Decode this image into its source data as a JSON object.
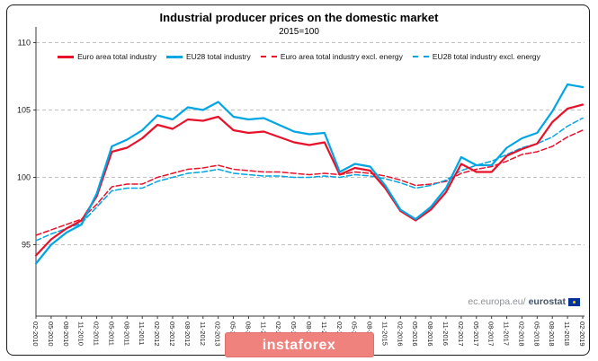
{
  "title": "Industrial producer prices on the domestic market",
  "subtitle": "2015=100",
  "watermark": {
    "prefix": "ec.europa.eu/",
    "brand": "eurostat"
  },
  "banner": {
    "label": "instaforex"
  },
  "colors": {
    "red": "#e8112a",
    "blue": "#00a5e3",
    "grid": "#c0c0c0",
    "axis": "#3a3a3a",
    "text": "#1a1a1a",
    "banner_bg": "#f0827d",
    "banner_border": "#e26e69",
    "flag_blue": "#003399",
    "flag_star": "#ffcc00"
  },
  "chart_data": {
    "type": "line",
    "title": "Industrial producer prices on the domestic market",
    "subtitle": "2015=100",
    "xlabel": "",
    "ylabel": "",
    "ylim": [
      89.7,
      110.5
    ],
    "yticks": [
      95,
      100,
      105,
      110
    ],
    "grid": "horizontal-dashed",
    "legend_position": "top",
    "x": [
      "02-2010",
      "05-2010",
      "08-2010",
      "11-2010",
      "02-2011",
      "05-2011",
      "08-2011",
      "11-2011",
      "02-2012",
      "05-2012",
      "08-2012",
      "11-2012",
      "02-2013",
      "05-2013",
      "08-2013",
      "11-2013",
      "02-2014",
      "05-2014",
      "08-2014",
      "11-2014",
      "02-2015",
      "05-2015",
      "08-2015",
      "11-2015",
      "02-2016",
      "05-2016",
      "08-2016",
      "11-2016",
      "02-2017",
      "05-2017",
      "08-2017",
      "11-2017",
      "02-2018",
      "05-2018",
      "08-2018",
      "11-2018",
      "02-2019"
    ],
    "series": [
      {
        "name": "Euro area total industry",
        "color": "#e8112a",
        "style": "solid",
        "values": [
          94.2,
          95.4,
          96.2,
          96.8,
          98.6,
          101.9,
          102.2,
          102.9,
          103.9,
          103.6,
          104.3,
          104.2,
          104.5,
          103.5,
          103.3,
          103.4,
          103.0,
          102.6,
          102.4,
          102.6,
          100.2,
          100.7,
          100.5,
          99.2,
          97.5,
          96.8,
          97.6,
          98.9,
          101.0,
          100.4,
          100.4,
          101.6,
          102.1,
          102.5,
          104.1,
          105.1,
          105.4
        ]
      },
      {
        "name": "EU28 total industry",
        "color": "#00a5e3",
        "style": "solid",
        "values": [
          93.6,
          95.0,
          95.9,
          96.5,
          98.8,
          102.3,
          102.8,
          103.5,
          104.6,
          104.3,
          105.2,
          105.0,
          105.6,
          104.5,
          104.3,
          104.4,
          103.9,
          103.4,
          103.2,
          103.3,
          100.4,
          101.0,
          100.8,
          99.4,
          97.6,
          96.9,
          97.8,
          99.2,
          101.5,
          100.9,
          100.9,
          102.2,
          102.9,
          103.3,
          104.9,
          106.9,
          106.7
        ]
      },
      {
        "name": "Euro area total industry excl. energy",
        "color": "#e8112a",
        "style": "dashed",
        "values": [
          95.7,
          96.1,
          96.5,
          96.9,
          98.0,
          99.3,
          99.5,
          99.5,
          100.0,
          100.3,
          100.6,
          100.7,
          100.9,
          100.6,
          100.5,
          100.4,
          100.4,
          100.3,
          100.2,
          100.3,
          100.2,
          100.4,
          100.3,
          100.1,
          99.8,
          99.4,
          99.5,
          99.7,
          100.3,
          100.6,
          100.8,
          101.2,
          101.7,
          101.9,
          102.3,
          103.0,
          103.5
        ]
      },
      {
        "name": "EU28 total industry excl. energy",
        "color": "#00a5e3",
        "style": "dashed",
        "values": [
          95.3,
          95.8,
          96.2,
          96.6,
          97.8,
          99.0,
          99.2,
          99.2,
          99.7,
          100.0,
          100.3,
          100.4,
          100.6,
          100.3,
          100.2,
          100.1,
          100.1,
          100.0,
          100.0,
          100.1,
          100.0,
          100.2,
          100.1,
          99.9,
          99.6,
          99.2,
          99.4,
          99.8,
          100.5,
          100.9,
          101.2,
          101.7,
          102.2,
          102.5,
          103.0,
          103.8,
          104.4
        ]
      }
    ]
  }
}
